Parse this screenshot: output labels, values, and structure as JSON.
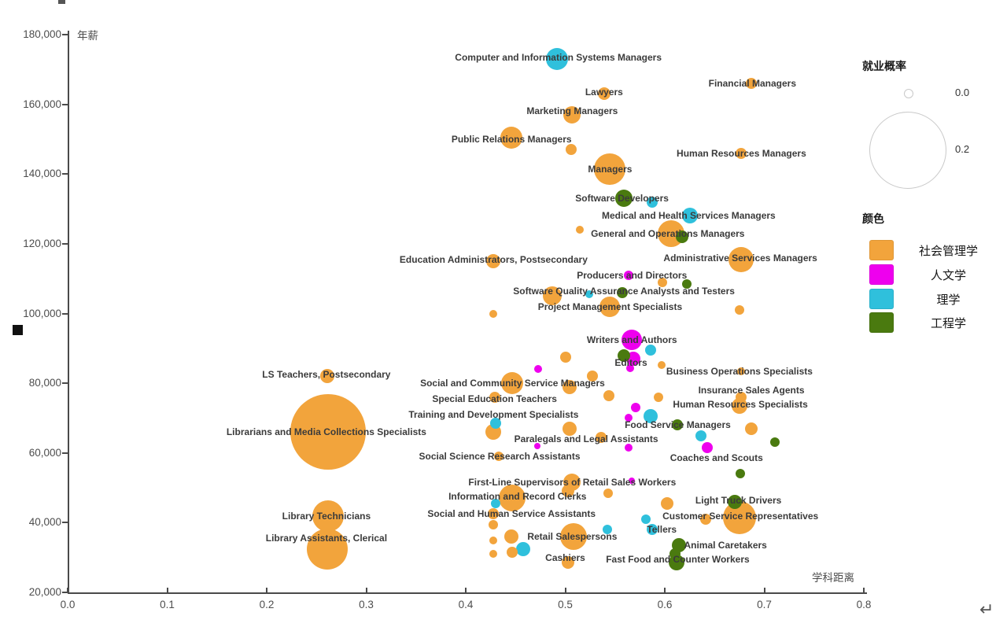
{
  "chart_data": {
    "type": "scatter",
    "title": "",
    "x_axis": {
      "title": "学科距离",
      "min": 0.0,
      "max": 0.8,
      "tick_labels": [
        "0.0",
        "0.1",
        "0.2",
        "0.3",
        "0.4",
        "0.5",
        "0.6",
        "0.7",
        "0.8"
      ]
    },
    "y_axis": {
      "title": "年薪",
      "min": 20000,
      "max": 180000,
      "tick_labels": [
        "180,000",
        "160,000",
        "140,000",
        "120,000",
        "100,000",
        "80,000",
        "60,000",
        "40,000",
        "20,000"
      ]
    },
    "grid": false,
    "size_legend": {
      "title": "就业概率",
      "items": [
        {
          "label": "0.0",
          "radius_px": 5
        },
        {
          "label": "0.2",
          "radius_px": 48
        }
      ]
    },
    "color_legend": {
      "title": "颜色",
      "items": [
        {
          "label": "社会管理学",
          "color": "#F2A43C"
        },
        {
          "label": "人文学",
          "color": "#EE00EE"
        },
        {
          "label": "理学",
          "color": "#2FC0DC"
        },
        {
          "label": "工程学",
          "color": "#4A7A0F"
        }
      ]
    },
    "points": [
      [
        0.492,
        173000,
        14,
        2
      ],
      [
        0.687,
        166000,
        7,
        0
      ],
      [
        0.539,
        163000,
        8,
        0
      ],
      [
        0.507,
        157000,
        11,
        0
      ],
      [
        0.446,
        150500,
        14,
        0
      ],
      [
        0.506,
        147000,
        7,
        0
      ],
      [
        0.545,
        141500,
        20,
        0
      ],
      [
        0.677,
        146000,
        7,
        0
      ],
      [
        0.559,
        133000,
        11,
        3
      ],
      [
        0.587,
        132000,
        7,
        2
      ],
      [
        0.625,
        128000,
        10,
        2
      ],
      [
        0.515,
        124000,
        5,
        0
      ],
      [
        0.606,
        123000,
        17,
        0
      ],
      [
        0.617,
        122000,
        8,
        3
      ],
      [
        0.677,
        115500,
        16,
        0
      ],
      [
        0.428,
        115000,
        9,
        0
      ],
      [
        0.564,
        111000,
        6,
        1
      ],
      [
        0.598,
        109000,
        6,
        0
      ],
      [
        0.622,
        108500,
        6,
        3
      ],
      [
        0.487,
        105000,
        12,
        0
      ],
      [
        0.524,
        105500,
        5,
        2
      ],
      [
        0.557,
        106000,
        7,
        3
      ],
      [
        0.545,
        102000,
        13,
        0
      ],
      [
        0.428,
        100000,
        5,
        0
      ],
      [
        0.675,
        101000,
        6,
        0
      ],
      [
        0.567,
        92500,
        13,
        1
      ],
      [
        0.586,
        89500,
        7,
        2
      ],
      [
        0.559,
        88000,
        8,
        3
      ],
      [
        0.568,
        87000,
        9,
        1
      ],
      [
        0.565,
        84300,
        5,
        1
      ],
      [
        0.5,
        87500,
        7,
        0
      ],
      [
        0.473,
        84000,
        5,
        1
      ],
      [
        0.597,
        85200,
        5,
        0
      ],
      [
        0.677,
        83500,
        5,
        0
      ],
      [
        0.261,
        82000,
        9,
        0
      ],
      [
        0.447,
        80000,
        14,
        0
      ],
      [
        0.527,
        82000,
        7,
        0
      ],
      [
        0.504,
        79000,
        9,
        0
      ],
      [
        0.544,
        76500,
        7,
        0
      ],
      [
        0.429,
        76000,
        7,
        0
      ],
      [
        0.677,
        76000,
        7,
        0
      ],
      [
        0.675,
        73500,
        10,
        0
      ],
      [
        0.594,
        76000,
        6,
        0
      ],
      [
        0.571,
        73000,
        6,
        1
      ],
      [
        0.586,
        70500,
        9,
        2
      ],
      [
        0.564,
        70000,
        5,
        1
      ],
      [
        0.43,
        68500,
        7,
        2
      ],
      [
        0.428,
        66000,
        10,
        0
      ],
      [
        0.262,
        66000,
        48,
        0
      ],
      [
        0.613,
        68000,
        7,
        3
      ],
      [
        0.687,
        67000,
        8,
        0
      ],
      [
        0.636,
        65000,
        7,
        2
      ],
      [
        0.504,
        67000,
        9,
        0
      ],
      [
        0.536,
        64500,
        7,
        0
      ],
      [
        0.472,
        62000,
        4,
        1
      ],
      [
        0.564,
        61500,
        5,
        1
      ],
      [
        0.643,
        61500,
        7,
        1
      ],
      [
        0.711,
        63000,
        6,
        3
      ],
      [
        0.433,
        59000,
        6,
        0
      ],
      [
        0.676,
        54000,
        6,
        3
      ],
      [
        0.507,
        51500,
        11,
        0
      ],
      [
        0.567,
        52000,
        4,
        1
      ],
      [
        0.447,
        47000,
        17,
        0
      ],
      [
        0.43,
        45500,
        6,
        2
      ],
      [
        0.503,
        49000,
        8,
        0
      ],
      [
        0.543,
        48500,
        6,
        0
      ],
      [
        0.602,
        45500,
        8,
        0
      ],
      [
        0.67,
        46000,
        9,
        3
      ],
      [
        0.675,
        41500,
        21,
        0
      ],
      [
        0.641,
        41000,
        7,
        0
      ],
      [
        0.428,
        42500,
        7,
        0
      ],
      [
        0.428,
        39500,
        6,
        0
      ],
      [
        0.446,
        36000,
        9,
        0
      ],
      [
        0.428,
        35000,
        5,
        0
      ],
      [
        0.508,
        36000,
        17,
        0
      ],
      [
        0.458,
        32500,
        9,
        2
      ],
      [
        0.428,
        31000,
        5,
        0
      ],
      [
        0.447,
        31500,
        7,
        0
      ],
      [
        0.581,
        41000,
        6,
        2
      ],
      [
        0.587,
        38000,
        7,
        2
      ],
      [
        0.614,
        33500,
        9,
        3
      ],
      [
        0.61,
        31000,
        7,
        3
      ],
      [
        0.612,
        28500,
        10,
        3
      ],
      [
        0.503,
        28500,
        8,
        0
      ],
      [
        0.262,
        42000,
        20,
        0
      ],
      [
        0.261,
        32500,
        26,
        0
      ],
      [
        0.542,
        38000,
        6,
        2
      ]
    ],
    "labels": [
      [
        "Computer and Information Systems Managers",
        0.493,
        173500
      ],
      [
        "Financial Managers",
        0.688,
        166000
      ],
      [
        "Lawyers",
        0.539,
        163500
      ],
      [
        "Marketing Managers",
        0.507,
        158000
      ],
      [
        "Public Relations Managers",
        0.446,
        150000
      ],
      [
        "Human Resources Managers",
        0.677,
        146000
      ],
      [
        "Managers",
        0.545,
        141500
      ],
      [
        "Software Developers",
        0.557,
        133000
      ],
      [
        "Medical and Health Services Managers",
        0.624,
        128000
      ],
      [
        "General and Operations Managers",
        0.603,
        123000
      ],
      [
        "Administrative Services Managers",
        0.676,
        116000
      ],
      [
        "Education Administrators, Postsecondary",
        0.428,
        115500
      ],
      [
        "Producers and Directors",
        0.567,
        111000
      ],
      [
        "Software Quality Assurance Analysts and Testers",
        0.559,
        106500
      ],
      [
        "Project Management Specialists",
        0.545,
        102000
      ],
      [
        "Writers and Authors",
        0.567,
        92500
      ],
      [
        "Editors",
        0.566,
        86000
      ],
      [
        "Business Operations Specialists",
        0.675,
        83500
      ],
      [
        "LS Teachers, Postsecondary",
        0.26,
        82500
      ],
      [
        "Social and Community Service Managers",
        0.447,
        80000
      ],
      [
        "Insurance Sales Agents",
        0.687,
        78000
      ],
      [
        "Special Education Teachers",
        0.429,
        75500
      ],
      [
        "Human Resources Specialists",
        0.676,
        74000
      ],
      [
        "Training and Development Specialists",
        0.428,
        71000
      ],
      [
        "Librarians and Media Collections Specialists",
        0.26,
        66000
      ],
      [
        "Food Service Managers",
        0.613,
        68000
      ],
      [
        "Paralegals and Legal Assistants",
        0.521,
        64000
      ],
      [
        "Social Science Research Assistants",
        0.434,
        59000
      ],
      [
        "Coaches and Scouts",
        0.652,
        58500
      ],
      [
        "First-Line Supervisors of Retail Sales Workers",
        0.507,
        51500
      ],
      [
        "Information and Record Clerks",
        0.452,
        47500
      ],
      [
        "Light Truck Drivers",
        0.674,
        46500
      ],
      [
        "Social and Human Service Assistants",
        0.446,
        42500
      ],
      [
        "Customer Service Representatives",
        0.676,
        42000
      ],
      [
        "Tellers",
        0.597,
        38000
      ],
      [
        "Retail Salespersons",
        0.507,
        36000
      ],
      [
        "Animal Caretakers",
        0.661,
        33500
      ],
      [
        "Library Technicians",
        0.26,
        42000
      ],
      [
        "Library Assistants, Clerical",
        0.26,
        35500
      ],
      [
        "Cashiers",
        0.5,
        30000
      ],
      [
        "Fast Food and Counter Workers",
        0.613,
        29500
      ]
    ]
  },
  "icons": {
    "enter": "↵"
  }
}
